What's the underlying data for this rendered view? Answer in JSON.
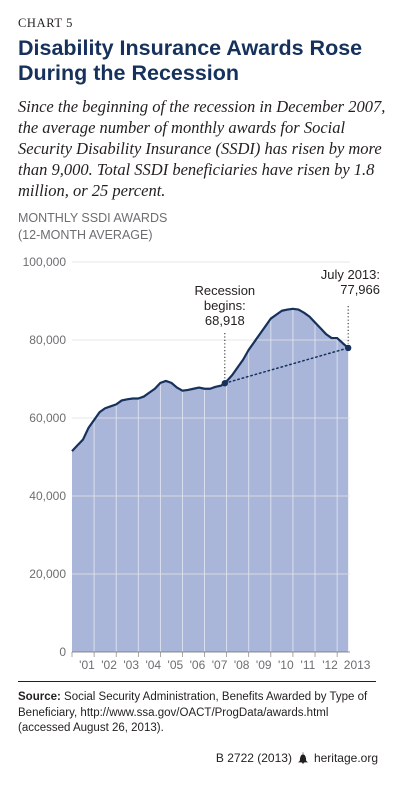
{
  "header": {
    "chart_number": "CHART 5",
    "title": "Disability Insurance Awards Rose During the Recession",
    "subtitle": "Since the beginning of the recession in December 2007, the average number of monthly awards for Social Security Disability Insurance (SSDI) has risen by more than 9,000. Total SSDI beneficiaries have risen by 1.8 million, or 25 percent."
  },
  "chart_data": {
    "type": "area",
    "ylabel_line1": "MONTHLY SSDI AWARDS",
    "ylabel_line2": "(12-MONTH AVERAGE)",
    "ylim": [
      0,
      100000
    ],
    "yticks": [
      "0",
      "20,000",
      "40,000",
      "60,000",
      "80,000",
      "100,000"
    ],
    "ytick_values": [
      0,
      20000,
      40000,
      60000,
      80000,
      100000
    ],
    "xlim": [
      2001,
      2013.583
    ],
    "xticks": [
      "'01",
      "'02",
      "'03",
      "'04",
      "'05",
      "'06",
      "'07",
      "'08",
      "'09",
      "'10",
      "'11",
      "'12",
      "2013"
    ],
    "xtick_positions": [
      2001,
      2002,
      2003,
      2004,
      2005,
      2006,
      2007,
      2008,
      2009,
      2010,
      2011,
      2012,
      2013
    ],
    "grid": true,
    "colors": {
      "fill": "#a9b5d9",
      "line": "#15315c",
      "grid": "#ffffff",
      "axis": "#231f20"
    },
    "series": [
      {
        "x": [
          2001.0,
          2001.25,
          2001.5,
          2001.75,
          2002.0,
          2002.25,
          2002.5,
          2002.75,
          2003.0,
          2003.25,
          2003.5,
          2003.75,
          2004.0,
          2004.25,
          2004.5,
          2004.75,
          2005.0,
          2005.25,
          2005.5,
          2005.75,
          2006.0,
          2006.25,
          2006.5,
          2006.75,
          2007.0,
          2007.25,
          2007.5,
          2007.75,
          2007.917,
          2008.25,
          2008.5,
          2008.75,
          2009.0,
          2009.25,
          2009.5,
          2009.75,
          2010.0,
          2010.25,
          2010.5,
          2010.75,
          2011.0,
          2011.25,
          2011.5,
          2011.75,
          2012.0,
          2012.25,
          2012.5,
          2012.75,
          2013.0,
          2013.25,
          2013.5
        ],
        "y": [
          51500,
          53000,
          54500,
          57500,
          59500,
          61500,
          62500,
          63000,
          63500,
          64500,
          64800,
          65000,
          65000,
          65500,
          66500,
          67500,
          69000,
          69500,
          69000,
          67800,
          67000,
          67200,
          67500,
          67800,
          67500,
          67500,
          68000,
          68300,
          68918,
          71000,
          73000,
          75000,
          77500,
          79500,
          81500,
          83500,
          85500,
          86500,
          87500,
          87800,
          88000,
          87800,
          87000,
          86000,
          84500,
          83000,
          81500,
          80500,
          80500,
          79200,
          77966
        ]
      }
    ],
    "annotations": [
      {
        "x": 2007.917,
        "y": 68918,
        "lines": [
          "Recession",
          "begins:",
          "68,918"
        ]
      },
      {
        "x": 2013.5,
        "y": 77966,
        "lines": [
          "July 2013:",
          "77,966"
        ]
      }
    ]
  },
  "footer": {
    "source_label": "Source:",
    "source_text": "Social Security Administration, Benefits Awarded by Type of Beneficiary, http://www.ssa.gov/OACT/ProgData/awards.html (accessed August 26, 2013).",
    "code": "B 2722 (2013)",
    "site": "heritage.org"
  }
}
